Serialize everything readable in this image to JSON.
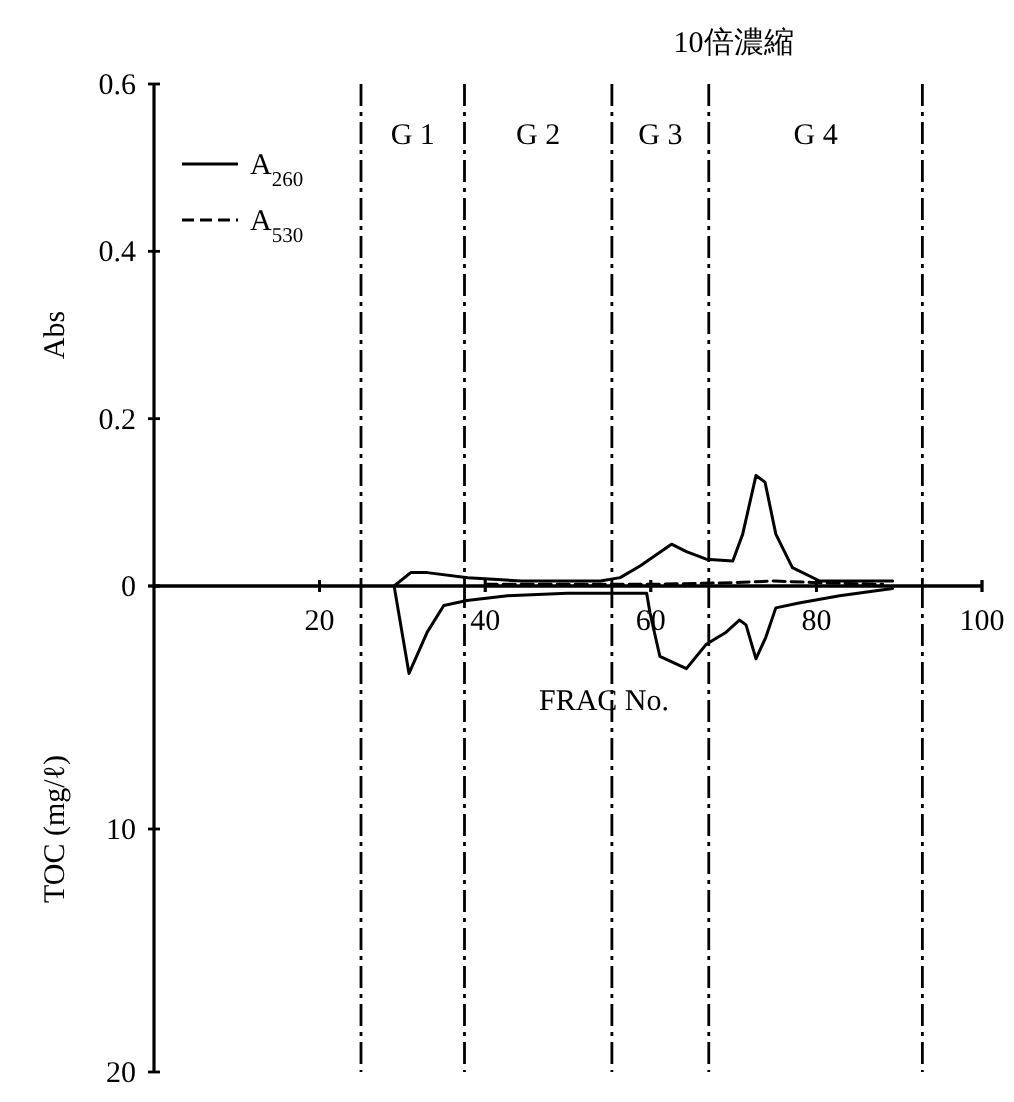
{
  "chart_data": [
    {
      "type": "line",
      "ylabel": "Abs",
      "xlim": [
        0,
        100
      ],
      "ylim": [
        0,
        0.6
      ],
      "xticks": [
        20,
        40,
        60,
        80,
        100
      ],
      "yticks": [
        0,
        0.2,
        0.4,
        0.6
      ],
      "tick_labels": "y",
      "legend": "top left",
      "marker": "none",
      "annotations": [
        "10倍濃縮",
        "G 1",
        "G 2",
        "G 3",
        "G 4"
      ],
      "ref_lines": [
        {
          "axis": "x",
          "value": 25
        },
        {
          "axis": "x",
          "value": 37.5
        },
        {
          "axis": "x",
          "value": 55.3
        },
        {
          "axis": "x",
          "value": 67
        },
        {
          "axis": "x",
          "value": 92.8
        }
      ],
      "series": [
        {
          "name": "A$_{260}$",
          "color": "#000000",
          "line_style": "solid",
          "x": [
            29,
            31,
            33,
            37.9,
            44.3,
            53.9,
            56.3,
            58.7,
            62.5,
            64.3,
            66.7,
            69.9,
            71.1,
            72.7,
            73.8,
            75.1,
            77.1,
            80.4,
            89.2
          ],
          "values": [
            0,
            0.016,
            0.016,
            0.01,
            0.006,
            0.006,
            0.01,
            0.024,
            0.05,
            0.041,
            0.032,
            0.03,
            0.062,
            0.132,
            0.124,
            0.062,
            0.022,
            0.006,
            0.006
          ]
        },
        {
          "name": "A$_{530}$",
          "color": "#000000",
          "line_style": "dashed",
          "x": [
            40,
            60,
            70,
            75,
            80,
            88
          ],
          "values": [
            0.002,
            0.002,
            0.004,
            0.006,
            0.004,
            0.002
          ]
        }
      ]
    },
    {
      "type": "line",
      "ylabel": "TOC (mg/ℓ)",
      "xlabel": "FRAC No.",
      "xlim": [
        0,
        100
      ],
      "ylim": [
        20,
        0
      ],
      "xticks": [
        20,
        40,
        60,
        80,
        100
      ],
      "yticks": [
        {
          "value": 0,
          "label": null
        },
        10,
        20
      ],
      "marker": "none",
      "ref_lines": [
        {
          "axis": "x",
          "value": 25
        },
        {
          "axis": "x",
          "value": 37.5
        },
        {
          "axis": "x",
          "value": 55.3
        },
        {
          "axis": "x",
          "value": 67
        },
        {
          "axis": "x",
          "value": 92.8
        }
      ],
      "series": [
        {
          "color": "#000000",
          "line_style": "solid",
          "x": [
            29,
            30.8,
            33,
            35,
            37.8,
            42.7,
            49.9,
            59.5,
            59.9,
            61.1,
            64.3,
            66.7,
            69.1,
            70.7,
            71.5,
            72.7,
            73.9,
            75.1,
            77.9,
            82.8,
            89.2
          ],
          "values": [
            0,
            3.6,
            1.9,
            0.8,
            0.6,
            0.4,
            0.3,
            0.3,
            1.1,
            2.9,
            3.4,
            2.4,
            1.9,
            1.4,
            1.6,
            3.0,
            2.1,
            0.9,
            0.7,
            0.4,
            0.1
          ]
        }
      ]
    }
  ]
}
